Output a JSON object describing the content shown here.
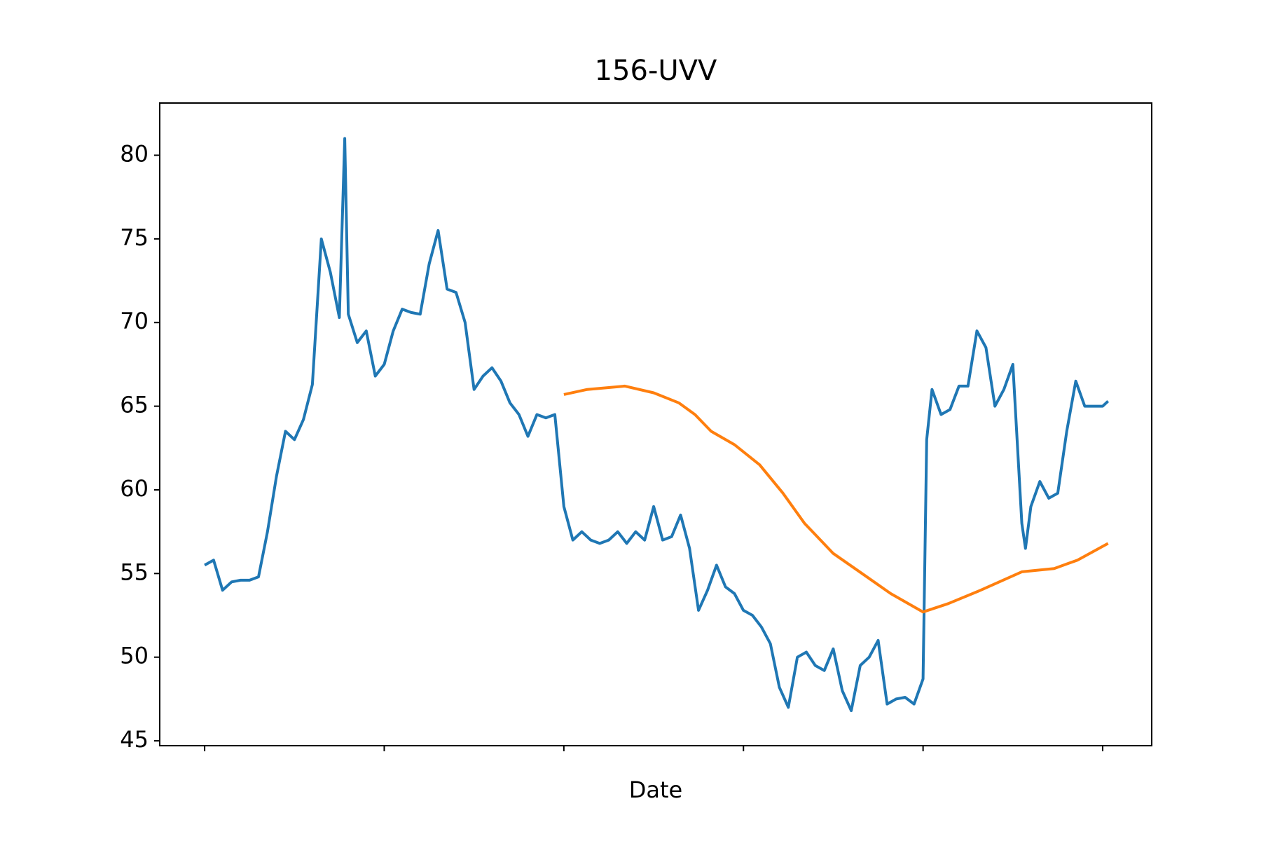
{
  "chart_data": {
    "type": "line",
    "title": "156-UVV",
    "xlabel": "Date",
    "series": [
      {
        "color": "#1f77b4",
        "x": [
          0,
          5,
          10,
          15,
          20,
          25,
          30,
          35,
          40,
          45,
          50,
          55,
          60,
          65,
          70,
          75,
          78,
          80,
          85,
          90,
          95,
          100,
          105,
          110,
          115,
          120,
          125,
          130,
          135,
          140,
          145,
          150,
          155,
          160,
          165,
          170,
          175,
          180,
          185,
          190,
          195,
          200,
          205,
          210,
          215,
          220,
          225,
          230,
          235,
          240,
          245,
          250,
          255,
          260,
          265,
          270,
          275,
          280,
          285,
          290,
          295,
          300,
          305,
          310,
          315,
          320,
          325,
          330,
          335,
          340,
          345,
          350,
          355,
          360,
          365,
          370,
          375,
          380,
          385,
          390,
          395,
          400,
          402,
          405,
          410,
          415,
          420,
          425,
          430,
          435,
          440,
          445,
          450,
          455,
          457,
          460,
          465,
          470,
          475,
          480,
          485,
          490,
          495,
          500,
          503
        ],
        "values": [
          55.5,
          55.8,
          54,
          54.5,
          54.6,
          54.6,
          54.8,
          57.5,
          60.8,
          63.5,
          63,
          64.2,
          66.3,
          75,
          73,
          70.3,
          81,
          70.5,
          68.8,
          69.5,
          66.8,
          67.5,
          69.5,
          70.8,
          70.6,
          70.5,
          73.5,
          75.5,
          72,
          71.8,
          70,
          66,
          66.8,
          67.3,
          66.5,
          65.2,
          64.5,
          63.2,
          64.5,
          64.3,
          64.5,
          59,
          57,
          57.5,
          57,
          56.8,
          57,
          57.5,
          56.8,
          57.5,
          57,
          59,
          57,
          57.2,
          58.5,
          56.5,
          52.8,
          54,
          55.5,
          54.2,
          53.8,
          52.8,
          52.5,
          51.8,
          50.8,
          48.2,
          47,
          50,
          50.3,
          49.5,
          49.2,
          50.5,
          48,
          46.8,
          49.5,
          50,
          51,
          47.2,
          47.5,
          47.6,
          47.2,
          48.7,
          63,
          66,
          64.5,
          64.8,
          66.2,
          66.2,
          69.5,
          68.5,
          65,
          66,
          67.5,
          58,
          56.5,
          59,
          60.5,
          59.5,
          59.8,
          63.5,
          66.5,
          65,
          65,
          65,
          65.3
        ]
      },
      {
        "color": "#ff7f0e",
        "x": [
          200,
          213,
          234,
          250,
          264,
          273,
          282,
          295,
          309,
          322,
          334,
          350,
          366,
          382,
          400,
          414,
          432,
          455,
          473,
          486,
          503
        ],
        "values": [
          65.7,
          66,
          66.2,
          65.8,
          65.2,
          64.5,
          63.5,
          62.7,
          61.5,
          59.8,
          58,
          56.2,
          55,
          53.8,
          52.7,
          53.2,
          54,
          55.1,
          55.3,
          55.8,
          56.8
        ]
      }
    ],
    "xlim": [
      -25,
      527.3
    ],
    "xticks": [
      0,
      100,
      200,
      300,
      400,
      500
    ],
    "ylim": [
      44.71,
      83.12
    ],
    "yticks": [
      45,
      50,
      55,
      60,
      65,
      70,
      75,
      80
    ]
  }
}
